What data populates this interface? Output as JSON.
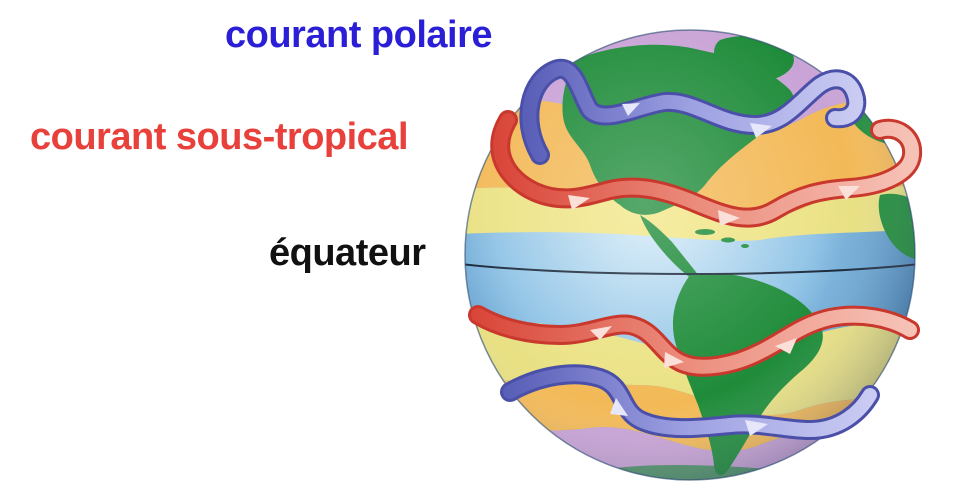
{
  "labels": {
    "polar_jet": "courant polaire",
    "subtropical_jet": "courant sous-tropical",
    "equator": "équateur"
  },
  "colors": {
    "polar_label": "#2a1fd6",
    "subtropical_label": "#e8403a",
    "equator_label": "#111111",
    "polar_zone": "#c9a3d6",
    "temperate_zone": "#f3b957",
    "subtropical_zone": "#f5e57a",
    "tropical_ocean": "#8fc3e6",
    "land": "#1f8c3a",
    "polar_arrow": "#7b7fd0",
    "subtropical_arrow": "#e2735e"
  }
}
